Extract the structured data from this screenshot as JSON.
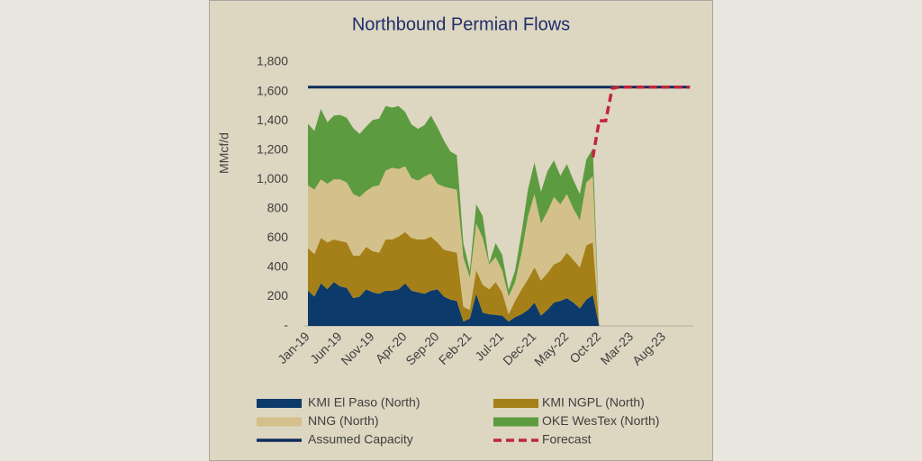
{
  "chart_data": {
    "type": "stacked-area",
    "title": "Northbound Permian Flows",
    "y_label": "MMcf/d",
    "categories": [
      "Jan-19",
      null,
      null,
      null,
      null,
      "Jun-19",
      null,
      null,
      null,
      null,
      "Nov-19",
      null,
      null,
      null,
      null,
      "Apr-20",
      null,
      null,
      null,
      null,
      "Sep-20",
      null,
      null,
      null,
      null,
      "Feb-21",
      null,
      null,
      null,
      null,
      "Jul-21",
      null,
      null,
      null,
      null,
      "Dec-21",
      null,
      null,
      null,
      null,
      "May-22",
      null,
      null,
      null,
      null,
      "Oct-22",
      null,
      null,
      null,
      null,
      "Mar-23",
      null,
      null,
      null,
      null,
      "Aug-23",
      null,
      null,
      null,
      null
    ],
    "ylim": [
      0,
      1800
    ],
    "yticks": [
      {
        "value": 0,
        "label": "-"
      },
      200,
      400,
      600,
      800,
      {
        "value": 1000,
        "label": "1,000"
      },
      {
        "value": 1200,
        "label": "1,200"
      },
      {
        "value": 1400,
        "label": "1,400"
      },
      {
        "value": 1600,
        "label": "1,600"
      },
      {
        "value": 1800,
        "label": "1,800"
      }
    ],
    "grid": false,
    "series": [
      {
        "name": "KMI El Paso (North)",
        "kind": "area",
        "color": "#0c3a6b",
        "values": [
          240,
          200,
          290,
          250,
          300,
          270,
          260,
          190,
          200,
          250,
          230,
          220,
          240,
          240,
          250,
          290,
          240,
          230,
          220,
          240,
          250,
          200,
          180,
          170,
          30,
          50,
          220,
          90,
          80,
          75,
          70,
          30,
          60,
          80,
          110,
          160,
          70,
          110,
          160,
          170,
          190,
          160,
          120,
          180,
          210,
          0,
          null,
          null,
          null,
          null,
          null,
          null,
          null,
          null,
          null,
          null,
          null,
          null,
          null,
          null
        ]
      },
      {
        "name": "KMI NGPL (North)",
        "kind": "area",
        "color": "#a58018",
        "values": [
          290,
          290,
          310,
          320,
          290,
          310,
          310,
          290,
          280,
          290,
          280,
          280,
          350,
          350,
          360,
          350,
          360,
          360,
          370,
          370,
          320,
          320,
          330,
          330,
          100,
          60,
          160,
          190,
          170,
          225,
          160,
          50,
          110,
          170,
          210,
          240,
          240,
          250,
          260,
          270,
          310,
          290,
          280,
          370,
          360,
          0,
          null,
          null,
          null,
          null,
          null,
          null,
          null,
          null,
          null,
          null,
          null,
          null,
          null,
          null
        ]
      },
      {
        "name": "NNG (North)",
        "kind": "area",
        "color": "#d4c08a",
        "values": [
          430,
          440,
          400,
          400,
          410,
          420,
          410,
          420,
          400,
          380,
          440,
          460,
          470,
          490,
          460,
          450,
          410,
          400,
          430,
          430,
          400,
          430,
          430,
          430,
          340,
          220,
          320,
          320,
          170,
          170,
          150,
          120,
          130,
          250,
          430,
          500,
          390,
          420,
          460,
          390,
          400,
          350,
          320,
          430,
          450,
          0,
          null,
          null,
          null,
          null,
          null,
          null,
          null,
          null,
          null,
          null,
          null,
          null,
          null,
          null
        ]
      },
      {
        "name": "OKE WesTex (North)",
        "kind": "area",
        "color": "#5d9b40",
        "values": [
          420,
          400,
          480,
          420,
          435,
          440,
          440,
          450,
          430,
          440,
          455,
          455,
          440,
          410,
          430,
          370,
          365,
          355,
          350,
          395,
          385,
          315,
          250,
          235,
          95,
          50,
          130,
          150,
          10,
          95,
          105,
          45,
          80,
          140,
          185,
          215,
          215,
          275,
          250,
          195,
          205,
          195,
          180,
          155,
          190,
          0,
          null,
          null,
          null,
          null,
          null,
          null,
          null,
          null,
          null,
          null,
          null,
          null,
          null,
          null
        ]
      },
      {
        "name": "Assumed Capacity",
        "kind": "line",
        "color": "#0e2d5c",
        "values": [
          1630,
          1630,
          1630,
          1630,
          1630,
          1630,
          1630,
          1630,
          1630,
          1630,
          1630,
          1630,
          1630,
          1630,
          1630,
          1630,
          1630,
          1630,
          1630,
          1630,
          1630,
          1630,
          1630,
          1630,
          1630,
          1630,
          1630,
          1630,
          1630,
          1630,
          1630,
          1630,
          1630,
          1630,
          1630,
          1630,
          1630,
          1630,
          1630,
          1630,
          1630,
          1630,
          1630,
          1630,
          1630,
          1630,
          1630,
          1630,
          1630,
          1630,
          1630,
          1630,
          1630,
          1630,
          1630,
          1630,
          1630,
          1630,
          1630,
          1630
        ]
      },
      {
        "name": "Forecast",
        "kind": "line",
        "dashed": true,
        "color": "#c0263a",
        "values": [
          null,
          null,
          null,
          null,
          null,
          null,
          null,
          null,
          null,
          null,
          null,
          null,
          null,
          null,
          null,
          null,
          null,
          null,
          null,
          null,
          null,
          null,
          null,
          null,
          null,
          null,
          null,
          null,
          null,
          null,
          null,
          null,
          null,
          null,
          null,
          null,
          null,
          null,
          null,
          null,
          null,
          null,
          null,
          null,
          1150,
          1400,
          1400,
          1620,
          1630,
          1630,
          1630,
          1630,
          1630,
          1630,
          1630,
          1630,
          1630,
          1630,
          1630,
          1630
        ]
      }
    ]
  }
}
